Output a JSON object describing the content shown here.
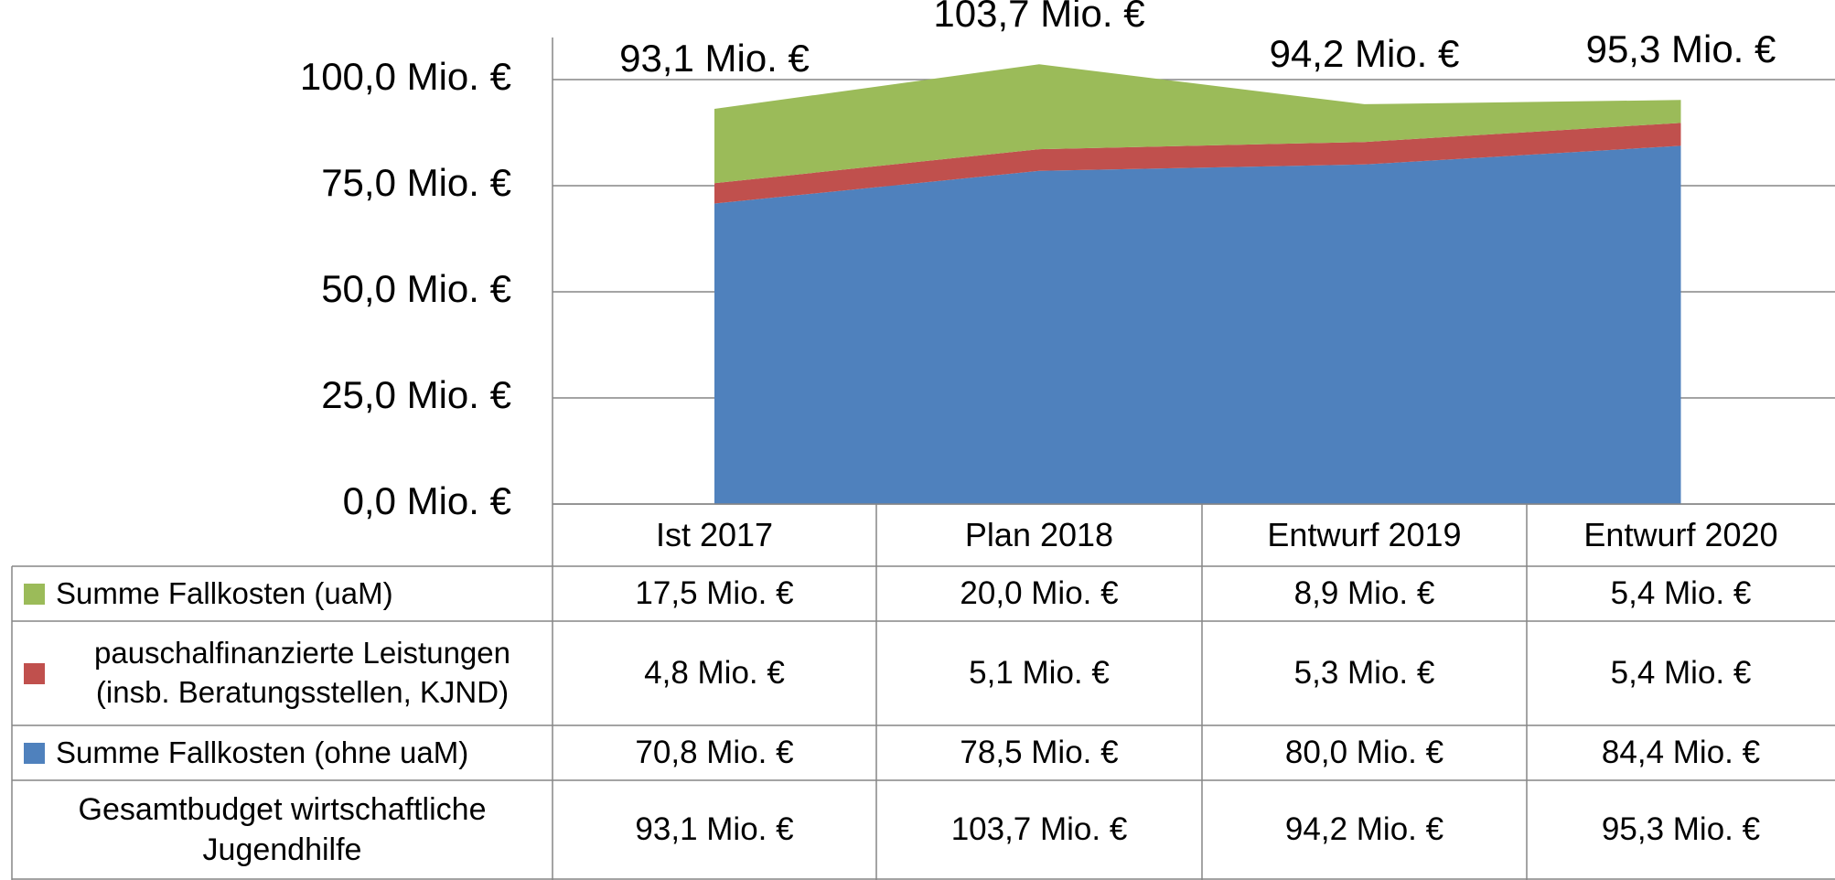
{
  "chart_data": {
    "type": "area",
    "stacked": true,
    "categories": [
      "Ist 2017",
      "Plan 2018",
      "Entwurf 2019",
      "Entwurf 2020"
    ],
    "series": [
      {
        "name": "Summe Fallkosten (uaM)",
        "color": "#9bbb59",
        "values": [
          17.5,
          20.0,
          8.9,
          5.4
        ],
        "value_labels": [
          "17,5 Mio. €",
          "20,0 Mio. €",
          "8,9 Mio. €",
          "5,4 Mio. €"
        ]
      },
      {
        "name": "pauschalfinanzierte Leistungen (insb. Beratungsstellen, KJND)",
        "color": "#c0504d",
        "values": [
          4.8,
          5.1,
          5.3,
          5.4
        ],
        "value_labels": [
          "4,8 Mio. €",
          "5,1 Mio. €",
          "5,3 Mio. €",
          "5,4 Mio. €"
        ]
      },
      {
        "name": "Summe Fallkosten (ohne uaM)",
        "color": "#4f81bd",
        "values": [
          70.8,
          78.5,
          80.0,
          84.4
        ],
        "value_labels": [
          "70,8 Mio. €",
          "78,5 Mio. €",
          "80,0 Mio. €",
          "84,4 Mio. €"
        ]
      }
    ],
    "totals": {
      "name": "Gesamtbudget wirtschaftliche Jugendhilfe",
      "values": [
        93.1,
        103.7,
        94.2,
        95.3
      ],
      "value_labels": [
        "93,1 Mio. €",
        "103,7 Mio. €",
        "94,2 Mio. €",
        "95,3 Mio. €"
      ]
    },
    "ylim": [
      0,
      100
    ],
    "yticks": [
      {
        "value": 0,
        "label": "0,0 Mio. €"
      },
      {
        "value": 25,
        "label": "25,0 Mio. €"
      },
      {
        "value": 50,
        "label": "50,0 Mio. €"
      },
      {
        "value": 75,
        "label": "75,0 Mio. €"
      },
      {
        "value": 100,
        "label": "100,0 Mio. €"
      }
    ],
    "grid": true
  }
}
